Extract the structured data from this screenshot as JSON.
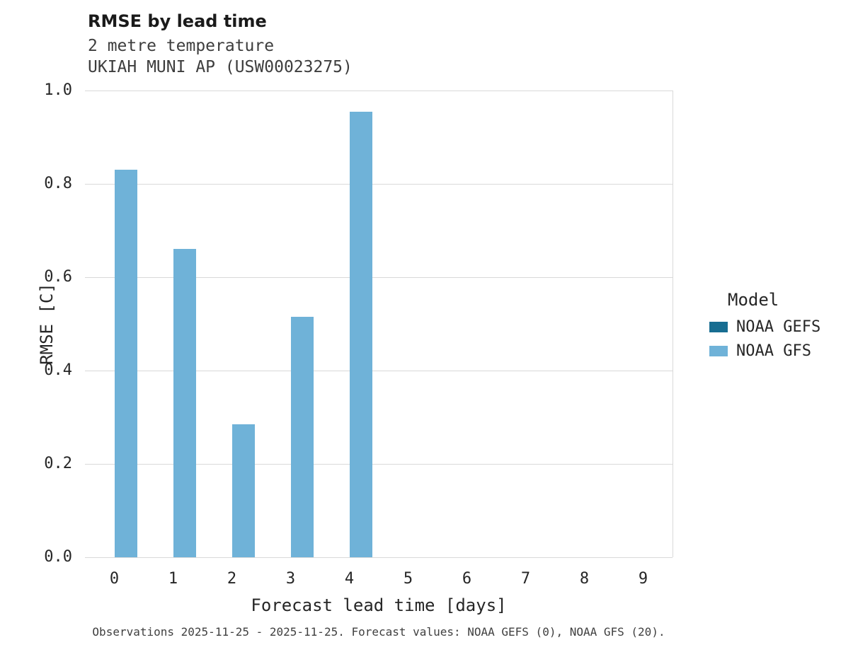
{
  "title": "RMSE by lead time",
  "subtitle_lines": [
    "2 metre temperature",
    "UKIAH MUNI AP (USW00023275)"
  ],
  "caption": "Observations 2025-11-25 - 2025-11-25. Forecast values: NOAA GEFS (0), NOAA GFS (20).",
  "legend": {
    "title": "Model",
    "entries": [
      {
        "label": "NOAA GEFS",
        "color": "#176d91"
      },
      {
        "label": "NOAA GFS",
        "color": "#6fb2d8"
      }
    ]
  },
  "chart_data": {
    "type": "bar",
    "x": [
      0,
      1,
      2,
      3,
      4,
      5,
      6,
      7,
      8,
      9
    ],
    "series": [
      {
        "name": "NOAA GEFS",
        "color": "#176d91",
        "values": [
          0,
          0,
          0,
          0,
          0,
          0,
          0,
          0,
          0,
          0
        ]
      },
      {
        "name": "NOAA GFS",
        "color": "#6fb2d8",
        "values": [
          0.83,
          0.66,
          0.285,
          0.515,
          0.955,
          0,
          0,
          0,
          0,
          0
        ]
      }
    ],
    "title": "RMSE by lead time",
    "xlabel": "Forecast lead time [days]",
    "ylabel": "RMSE [C]",
    "ylim": [
      0.0,
      1.0
    ],
    "yticks": [
      0.0,
      0.2,
      0.4,
      0.6,
      0.8,
      1.0
    ],
    "grid": true,
    "legend_position": "right"
  }
}
